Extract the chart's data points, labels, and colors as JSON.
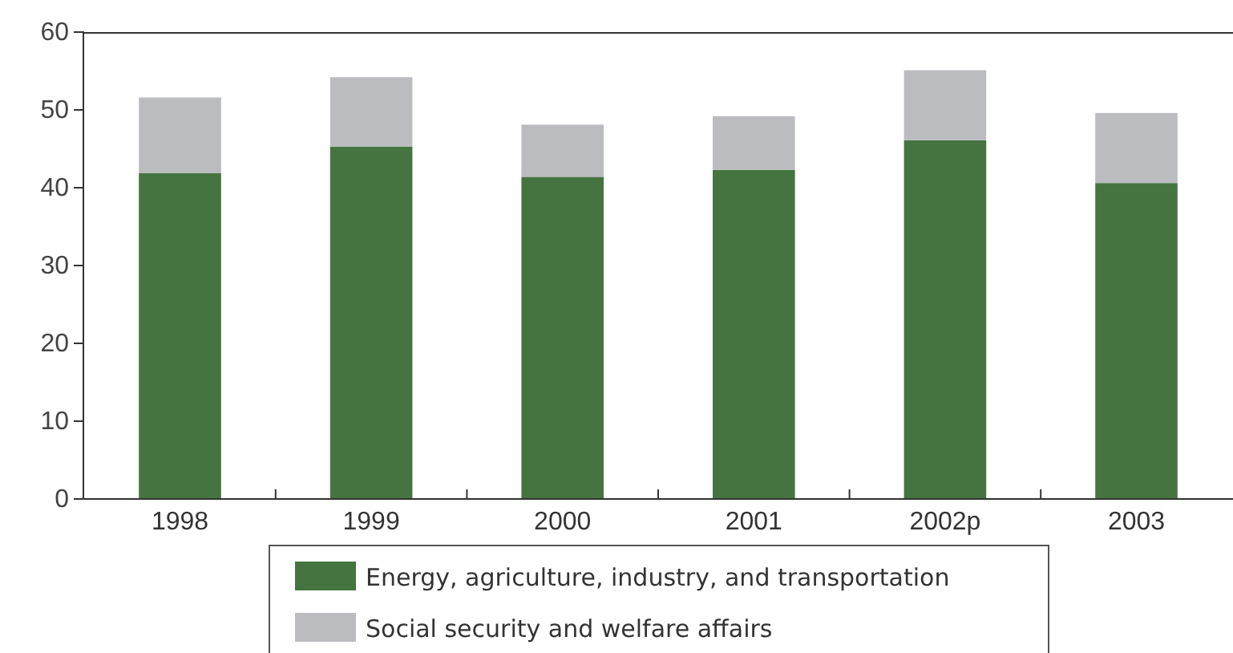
{
  "chart_data": {
    "type": "bar",
    "stacked": true,
    "categories": [
      "1998",
      "1999",
      "2000",
      "2001",
      "2002p",
      "2003"
    ],
    "series": [
      {
        "name": "Energy, agriculture, industry, and transportation",
        "color": "#457441",
        "values": [
          41.9,
          45.3,
          41.4,
          42.3,
          46.1,
          40.6
        ]
      },
      {
        "name": "Social security and welfare affairs",
        "color": "#bbbcc0",
        "values": [
          9.7,
          8.9,
          6.7,
          6.9,
          9.0,
          9.0
        ]
      }
    ],
    "ylim": [
      0,
      60
    ],
    "yticks": [
      0,
      10,
      20,
      30,
      40,
      50,
      60
    ],
    "grid": false,
    "legend": "bottom"
  }
}
